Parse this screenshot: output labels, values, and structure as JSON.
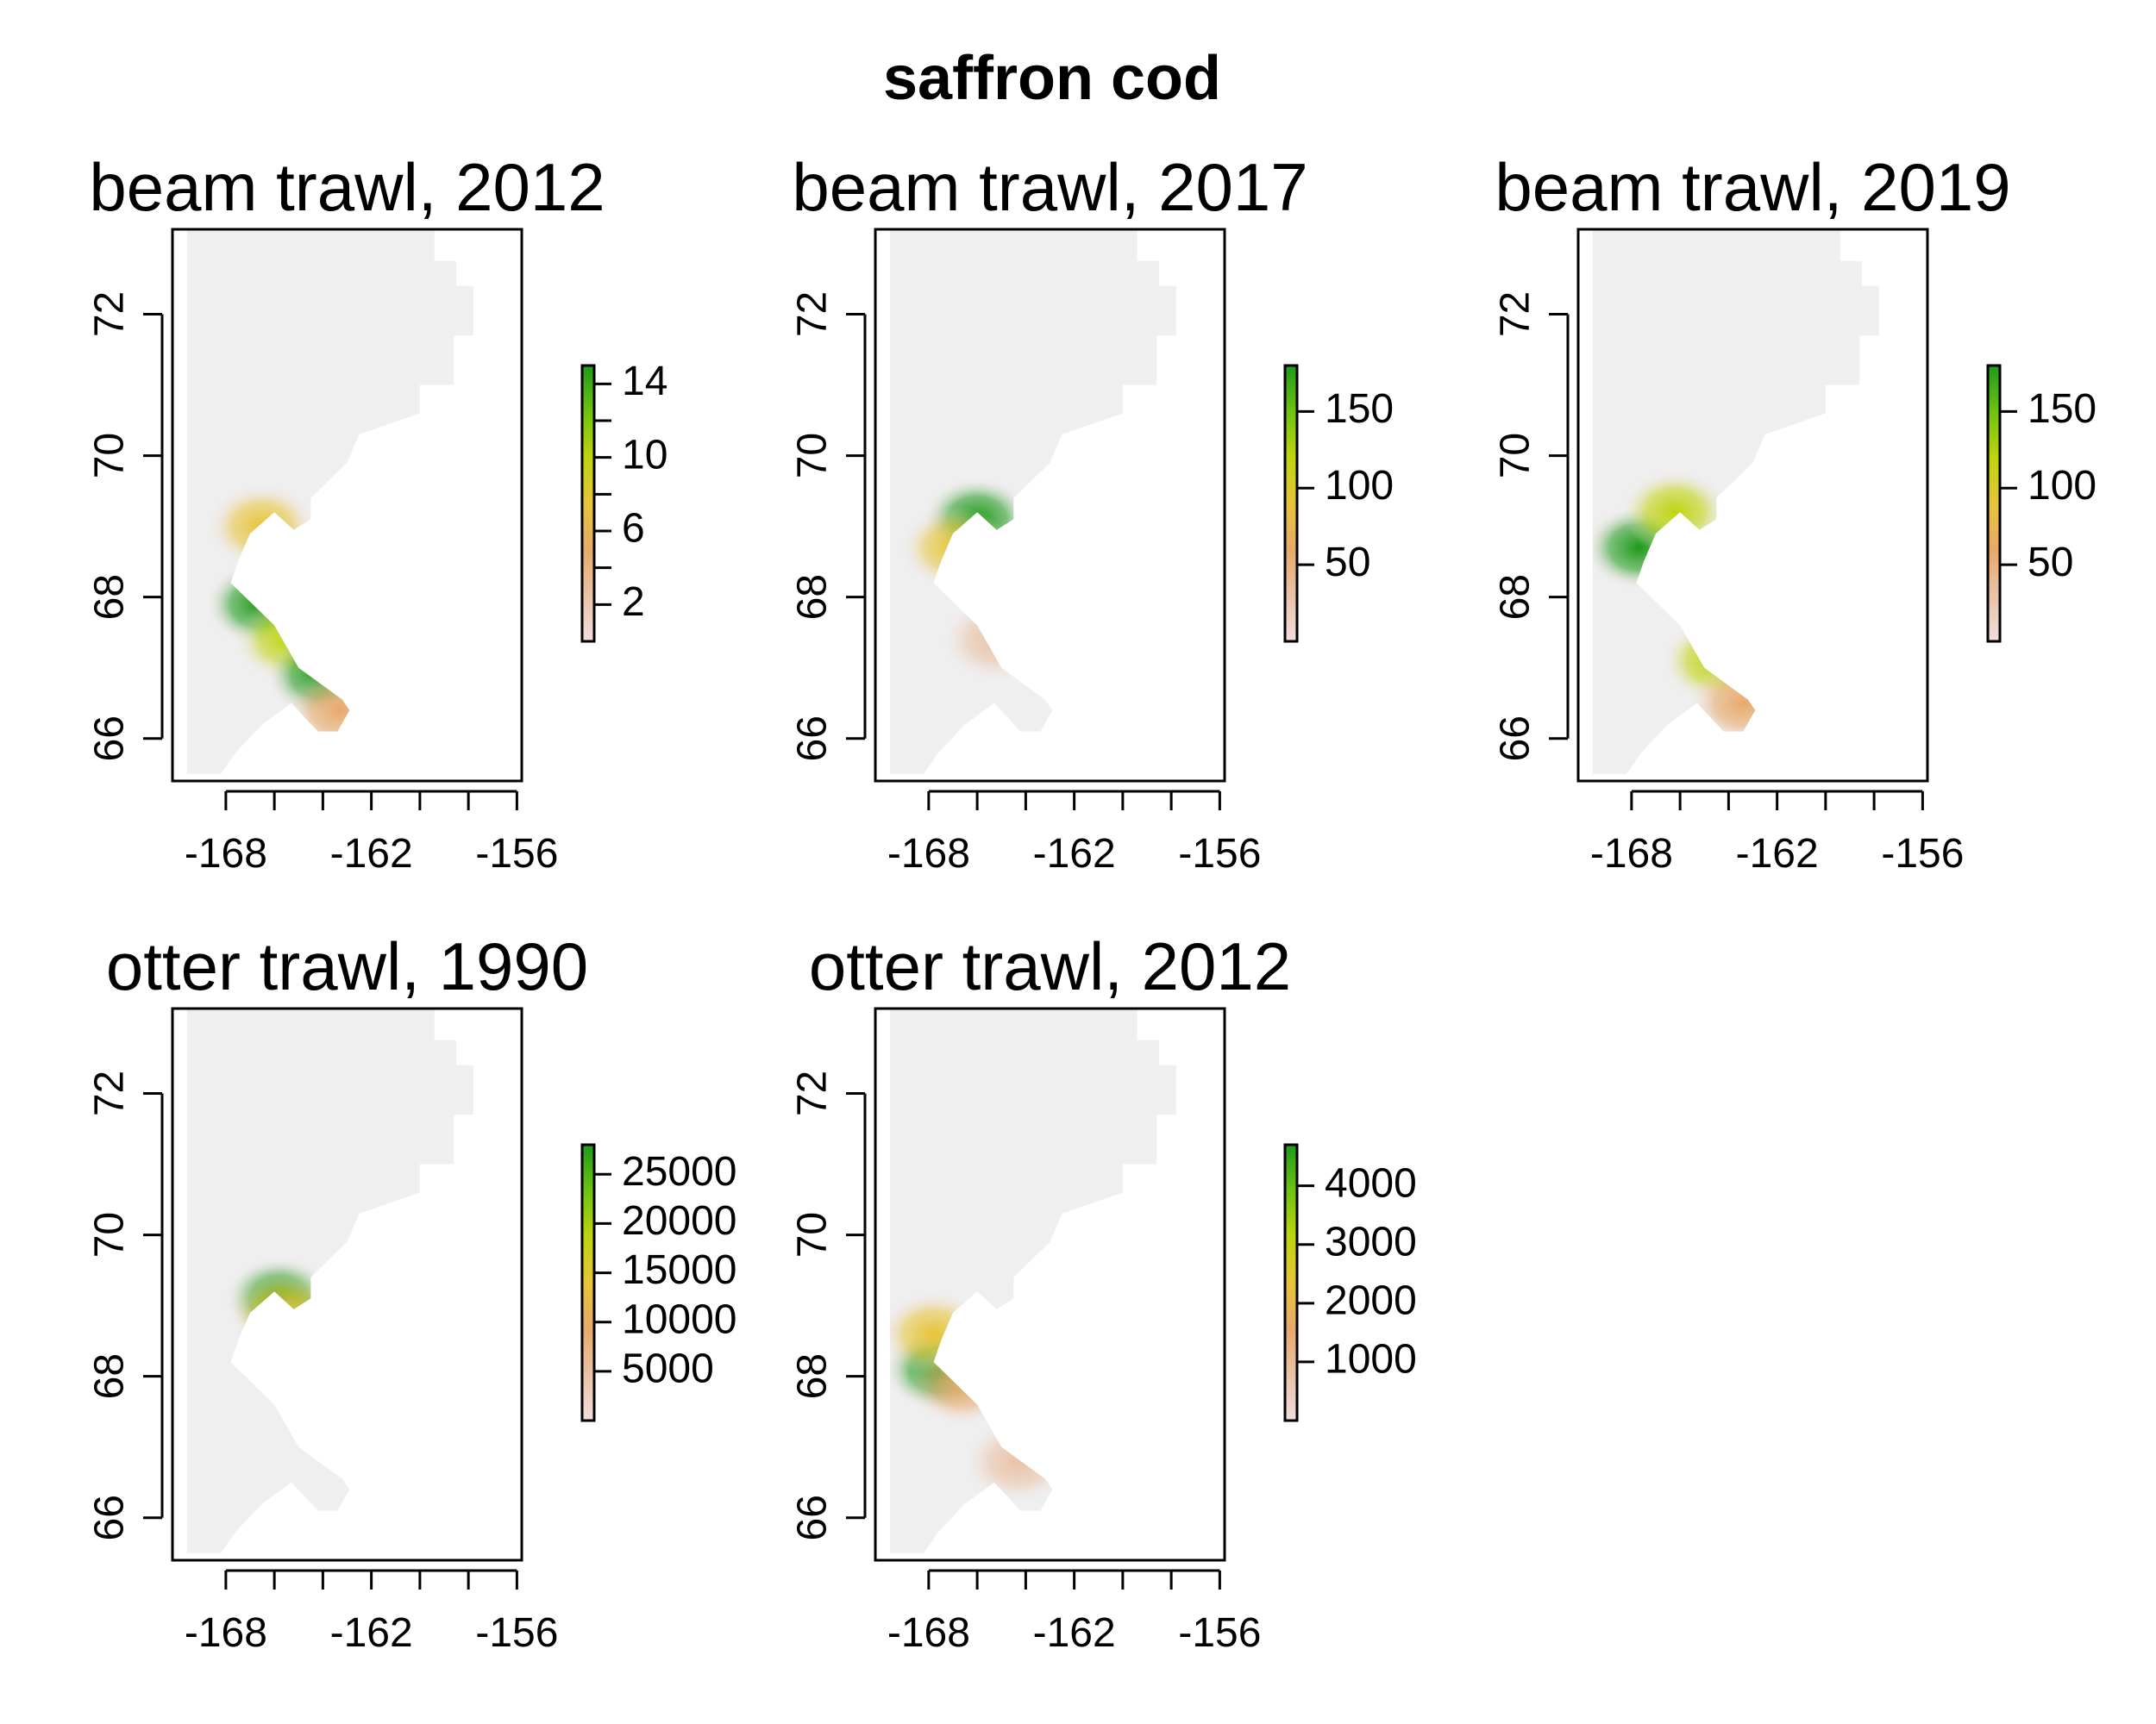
{
  "title": "saffron cod",
  "colors": {
    "land_fill": "#ffffff",
    "water_base": "#efefef",
    "ramp": [
      "#f1dede",
      "#eac2a6",
      "#e8a96a",
      "#e7c43a",
      "#bfd40e",
      "#6cc313",
      "#1f9a1a"
    ]
  },
  "chart_data": [
    {
      "type": "heatmap",
      "title": "beam trawl, 2012",
      "xlim": [
        -170.2,
        -155.8
      ],
      "ylim": [
        65.4,
        73.2
      ],
      "x_ticks": [
        -168,
        -166,
        -164,
        -162,
        -160,
        -158,
        -156
      ],
      "x_tick_labels": [
        "-168",
        "-162",
        "-156"
      ],
      "y_ticks": [
        66,
        68,
        70,
        72
      ],
      "y_tick_labels": [
        "66",
        "68",
        "70",
        "72"
      ],
      "colorbar": {
        "range": [
          0,
          15
        ],
        "ticks": [
          2,
          4,
          6,
          8,
          10,
          12,
          14
        ],
        "labels": [
          "2",
          "6",
          "10",
          "14"
        ]
      },
      "hotspots": [
        {
          "lon": -166.5,
          "lat": 69.0,
          "value": 7
        },
        {
          "lon": -166.6,
          "lat": 67.9,
          "value": 14
        },
        {
          "lon": -165.4,
          "lat": 67.4,
          "value": 11
        },
        {
          "lon": -164.1,
          "lat": 66.9,
          "value": 14
        },
        {
          "lon": -163.3,
          "lat": 66.4,
          "value": 4
        }
      ]
    },
    {
      "type": "heatmap",
      "title": "beam trawl, 2017",
      "xlim": [
        -170.2,
        -155.8
      ],
      "ylim": [
        65.4,
        73.2
      ],
      "x_ticks": [
        -168,
        -166,
        -164,
        -162,
        -160,
        -158,
        -156
      ],
      "x_tick_labels": [
        "-168",
        "-162",
        "-156"
      ],
      "y_ticks": [
        66,
        68,
        70,
        72
      ],
      "y_tick_labels": [
        "66",
        "68",
        "70",
        "72"
      ],
      "colorbar": {
        "range": [
          0,
          180
        ],
        "ticks": [
          50,
          100,
          150
        ],
        "labels": [
          "50",
          "100",
          "150"
        ]
      },
      "hotspots": [
        {
          "lon": -166.0,
          "lat": 69.1,
          "value": 175
        },
        {
          "lon": -166.9,
          "lat": 68.7,
          "value": 100
        },
        {
          "lon": -165.2,
          "lat": 67.4,
          "value": 20
        }
      ]
    },
    {
      "type": "heatmap",
      "title": "beam trawl, 2019",
      "xlim": [
        -170.2,
        -155.8
      ],
      "ylim": [
        65.4,
        73.2
      ],
      "x_ticks": [
        -168,
        -166,
        -164,
        -162,
        -160,
        -158,
        -156
      ],
      "x_tick_labels": [
        "-168",
        "-162",
        "-156"
      ],
      "y_ticks": [
        66,
        68,
        70,
        72
      ],
      "y_tick_labels": [
        "66",
        "68",
        "70",
        "72"
      ],
      "colorbar": {
        "range": [
          0,
          180
        ],
        "ticks": [
          50,
          100,
          150
        ],
        "labels": [
          "50",
          "100",
          "150"
        ]
      },
      "hotspots": [
        {
          "lon": -167.7,
          "lat": 68.7,
          "value": 175
        },
        {
          "lon": -166.2,
          "lat": 69.2,
          "value": 110
        },
        {
          "lon": -164.5,
          "lat": 67.1,
          "value": 105
        },
        {
          "lon": -163.4,
          "lat": 66.5,
          "value": 50
        }
      ]
    },
    {
      "type": "heatmap",
      "title": "otter trawl, 1990",
      "xlim": [
        -170.2,
        -155.8
      ],
      "ylim": [
        65.4,
        73.2
      ],
      "x_ticks": [
        -168,
        -166,
        -164,
        -162,
        -160,
        -158,
        -156
      ],
      "x_tick_labels": [
        "-168",
        "-162",
        "-156"
      ],
      "y_ticks": [
        66,
        68,
        70,
        72
      ],
      "y_tick_labels": [
        "66",
        "68",
        "70",
        "72"
      ],
      "colorbar": {
        "range": [
          0,
          28000
        ],
        "ticks": [
          5000,
          10000,
          15000,
          20000,
          25000
        ],
        "labels": [
          "5000",
          "10000",
          "15000",
          "20000",
          "25000"
        ]
      },
      "hotspots": [
        {
          "lon": -165.8,
          "lat": 69.1,
          "value": 27000
        },
        {
          "lon": -165.6,
          "lat": 68.9,
          "value": 15000
        }
      ]
    },
    {
      "type": "heatmap",
      "title": "otter trawl, 2012",
      "xlim": [
        -170.2,
        -155.8
      ],
      "ylim": [
        65.4,
        73.2
      ],
      "x_ticks": [
        -168,
        -166,
        -164,
        -162,
        -160,
        -158,
        -156
      ],
      "x_tick_labels": [
        "-168",
        "-162",
        "-156"
      ],
      "y_ticks": [
        66,
        68,
        70,
        72
      ],
      "y_tick_labels": [
        "66",
        "68",
        "70",
        "72"
      ],
      "colorbar": {
        "range": [
          0,
          4700
        ],
        "ticks": [
          1000,
          2000,
          3000,
          4000
        ],
        "labels": [
          "1000",
          "2000",
          "3000",
          "4000"
        ]
      },
      "hotspots": [
        {
          "lon": -167.6,
          "lat": 68.1,
          "value": 4500
        },
        {
          "lon": -167.8,
          "lat": 68.6,
          "value": 2500
        },
        {
          "lon": -166.6,
          "lat": 67.9,
          "value": 1500
        },
        {
          "lon": -164.3,
          "lat": 66.8,
          "value": 900
        }
      ]
    }
  ]
}
